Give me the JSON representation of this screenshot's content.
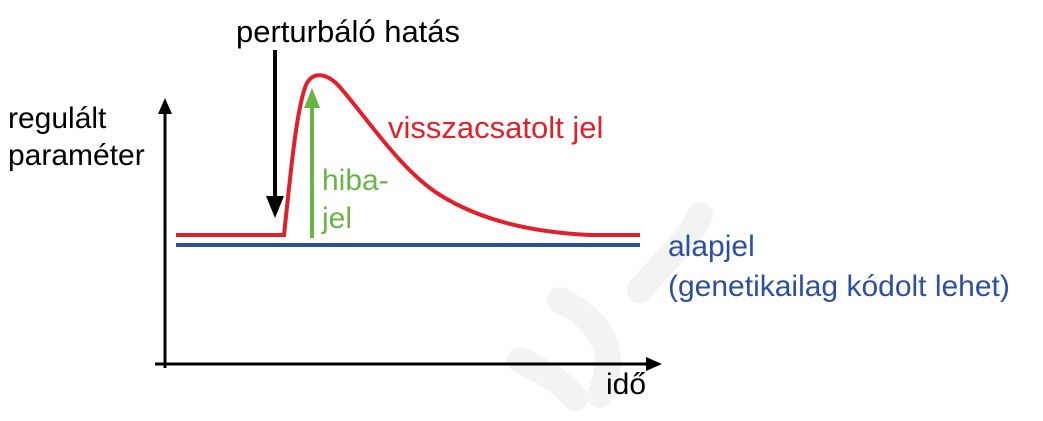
{
  "labels": {
    "perturbation": "perturbáló hatás",
    "y_axis_line1": "regulált",
    "y_axis_line2": "paraméter",
    "feedback_signal": "visszacsatolt jel",
    "error_signal_line1": "hiba-",
    "error_signal_line2": "jel",
    "setpoint_line1": "alapjel",
    "setpoint_line2": "(genetikailag kódolt lehet)",
    "x_axis": "idő"
  },
  "colors": {
    "feedback": "#e0202b",
    "setpoint": "#2d4fa0",
    "error": "#6ab446",
    "axis": "#000000",
    "watermark": "#f0f0f0"
  }
}
